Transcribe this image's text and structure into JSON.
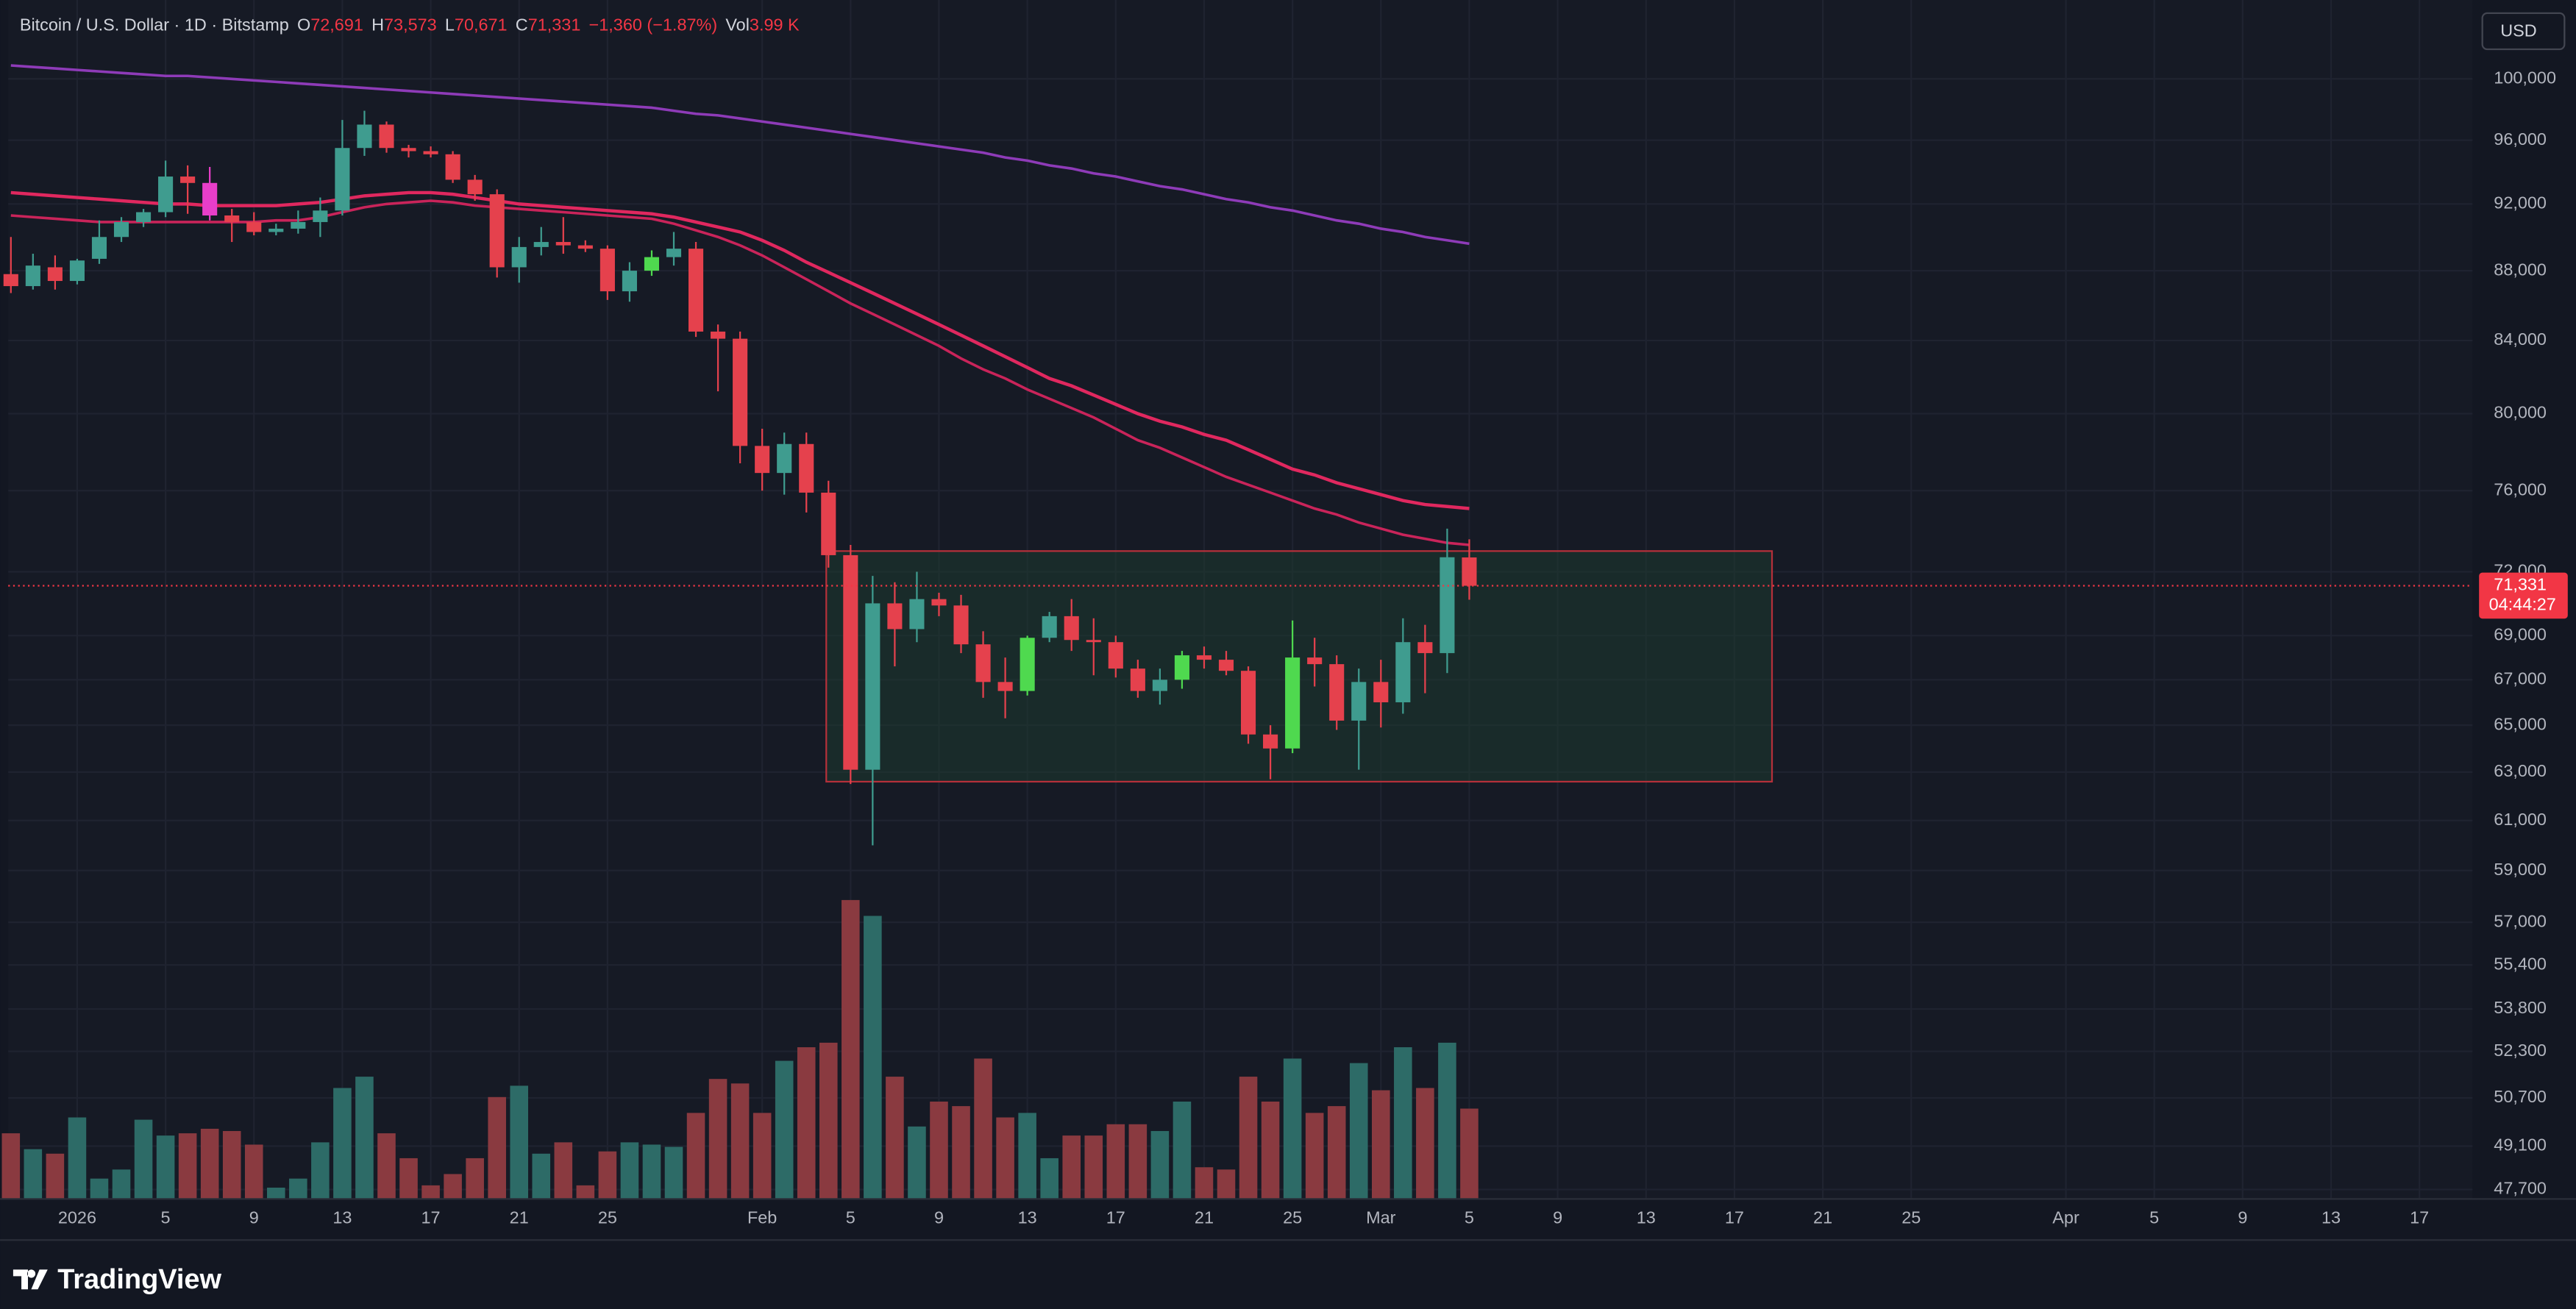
{
  "chart_data": {
    "type": "candlestick",
    "header": [
      {
        "text": "Bitcoin / U.S. Dollar · 1D · Bitstamp",
        "color": "#d1d4dc"
      },
      {
        "text": "O",
        "color": "#d1d4dc"
      },
      {
        "text": "72,691",
        "color": "#f23645"
      },
      {
        "text": "H",
        "color": "#d1d4dc"
      },
      {
        "text": "73,573",
        "color": "#f23645"
      },
      {
        "text": "L",
        "color": "#d1d4dc"
      },
      {
        "text": "70,671",
        "color": "#f23645"
      },
      {
        "text": "C",
        "color": "#d1d4dc"
      },
      {
        "text": "71,331",
        "color": "#f23645"
      },
      {
        "text": "−1,360 (−1.87%)",
        "color": "#f23645"
      },
      {
        "text": "Vol",
        "color": "#d1d4dc"
      },
      {
        "text": "3.99 K",
        "color": "#f23645"
      }
    ],
    "currency_button": "USD",
    "brand": "TradingView",
    "last_price": {
      "value": 71331,
      "label": "71,331",
      "countdown": "04:44:27",
      "color": "#f23645"
    },
    "log_scale": true,
    "grid": true,
    "xlim": [
      -2.12,
      109.4
    ],
    "xticks": [
      {
        "value": 1,
        "label": "2026"
      },
      5,
      9,
      13,
      17,
      21,
      25,
      {
        "value": 32,
        "label": "Feb"
      },
      {
        "value": 36,
        "label": "5"
      },
      {
        "value": 40,
        "label": "9"
      },
      {
        "value": 44,
        "label": "13"
      },
      {
        "value": 48,
        "label": "17"
      },
      {
        "value": 52,
        "label": "21"
      },
      {
        "value": 56,
        "label": "25"
      },
      {
        "value": 60,
        "label": "Mar"
      },
      {
        "value": 64,
        "label": "5"
      },
      {
        "value": 68,
        "label": "9"
      },
      {
        "value": 72,
        "label": "13"
      },
      {
        "value": 76,
        "label": "17"
      },
      {
        "value": 80,
        "label": "21"
      },
      {
        "value": 84,
        "label": "25"
      },
      {
        "value": 91,
        "label": "Apr"
      },
      {
        "value": 95,
        "label": "5"
      },
      {
        "value": 99,
        "label": "9"
      },
      {
        "value": 103,
        "label": "13"
      },
      {
        "value": 107,
        "label": "17"
      }
    ],
    "ylim": [
      47400,
      105400
    ],
    "yticks": [
      {
        "value": 100000,
        "label": "100,000"
      },
      {
        "value": 96000,
        "label": "96,000"
      },
      {
        "value": 92000,
        "label": "92,000"
      },
      {
        "value": 88000,
        "label": "88,000"
      },
      {
        "value": 84000,
        "label": "84,000"
      },
      {
        "value": 80000,
        "label": "80,000"
      },
      {
        "value": 76000,
        "label": "76,000"
      },
      {
        "value": 72000,
        "label": "72,000"
      },
      {
        "value": 69000,
        "label": "69,000"
      },
      {
        "value": 67000,
        "label": "67,000"
      },
      {
        "value": 65000,
        "label": "65,000"
      },
      {
        "value": 63000,
        "label": "63,000"
      },
      {
        "value": 61000,
        "label": "61,000"
      },
      {
        "value": 59000,
        "label": "59,000"
      },
      {
        "value": 57000,
        "label": "57,000"
      },
      {
        "value": 55400,
        "label": "55,400"
      },
      {
        "value": 53800,
        "label": "53,800"
      },
      {
        "value": 52300,
        "label": "52,300"
      },
      {
        "value": 50700,
        "label": "50,700"
      },
      {
        "value": 49100,
        "label": "49,100"
      },
      {
        "value": 47700,
        "label": "47,700"
      }
    ],
    "x": [
      -2,
      -1,
      0,
      1,
      2,
      3,
      4,
      5,
      6,
      7,
      8,
      9,
      10,
      11,
      12,
      13,
      14,
      15,
      16,
      17,
      18,
      19,
      20,
      21,
      22,
      23,
      24,
      25,
      26,
      27,
      28,
      29,
      30,
      31,
      32,
      33,
      34,
      35,
      36,
      37,
      38,
      39,
      40,
      41,
      42,
      43,
      44,
      45,
      46,
      47,
      48,
      49,
      50,
      51,
      52,
      53,
      54,
      55,
      56,
      57,
      58,
      59,
      60,
      61,
      62,
      63,
      64
    ],
    "open": [
      87800,
      87100,
      88200,
      87400,
      88700,
      90000,
      90900,
      91500,
      93700,
      93300,
      91300,
      90900,
      90300,
      90500,
      90900,
      91600,
      95500,
      97000,
      95500,
      95300,
      95100,
      93500,
      92600,
      88200,
      89400,
      89700,
      89500,
      89300,
      86800,
      88000,
      88800,
      89300,
      84500,
      84100,
      78300,
      76900,
      78400,
      75900,
      72800,
      63100,
      70500,
      69300,
      70700,
      70400,
      68600,
      66900,
      66500,
      68900,
      69900,
      68800,
      68700,
      67500,
      66500,
      67000,
      68100,
      67900,
      67400,
      64600,
      64000,
      68000,
      67700,
      65200,
      66900,
      66000,
      68700,
      68200,
      72691
    ],
    "high": [
      90000,
      89000,
      88900,
      88700,
      91000,
      91200,
      91700,
      94700,
      94400,
      94300,
      91700,
      91500,
      90800,
      91600,
      92400,
      97300,
      97900,
      97200,
      95700,
      95600,
      95300,
      93800,
      92900,
      90000,
      90600,
      91200,
      89800,
      89500,
      88500,
      89200,
      90300,
      89700,
      84900,
      84500,
      79200,
      79000,
      79000,
      76500,
      73300,
      71800,
      71500,
      72000,
      71000,
      70900,
      69200,
      68000,
      69000,
      70100,
      70700,
      69800,
      69000,
      67900,
      67500,
      68300,
      68500,
      68300,
      67600,
      65000,
      69700,
      68900,
      68100,
      67500,
      67900,
      69800,
      69500,
      74100,
      73573
    ],
    "low": [
      86700,
      86900,
      86900,
      87200,
      88400,
      89700,
      90600,
      91200,
      91400,
      91000,
      89700,
      90100,
      90100,
      90200,
      90000,
      91300,
      95000,
      95200,
      94900,
      94900,
      93300,
      92200,
      87600,
      87300,
      88900,
      89000,
      89100,
      86300,
      86200,
      87700,
      88300,
      84200,
      81200,
      77400,
      76000,
      75800,
      74900,
      72200,
      62500,
      60000,
      67600,
      68700,
      69900,
      68200,
      66200,
      65300,
      66300,
      68700,
      68300,
      67200,
      67100,
      66200,
      65900,
      66600,
      67500,
      67200,
      64200,
      62700,
      63800,
      66700,
      64800,
      63100,
      64900,
      65500,
      66400,
      67300,
      70671
    ],
    "close": [
      87100,
      88300,
      87400,
      88600,
      90000,
      90900,
      91500,
      93700,
      93300,
      91300,
      90900,
      90300,
      90500,
      90900,
      91600,
      95500,
      97000,
      95500,
      95300,
      95100,
      93500,
      92600,
      88200,
      89400,
      89700,
      89500,
      89300,
      86800,
      88000,
      88800,
      89300,
      84500,
      84100,
      78300,
      76900,
      78400,
      75900,
      72800,
      63100,
      70500,
      69300,
      70700,
      70400,
      68600,
      66900,
      66500,
      68900,
      69900,
      68800,
      68700,
      67500,
      66500,
      67000,
      68100,
      67900,
      67400,
      64600,
      64000,
      68000,
      67700,
      65200,
      66900,
      66000,
      68700,
      68200,
      72700,
      71331
    ],
    "candle_colors": [
      "#e5414d",
      "#3f9c8f",
      "#e5414d",
      "#3f9c8f",
      "#3f9c8f",
      "#3f9c8f",
      "#3f9c8f",
      "#3f9c8f",
      "#e5414d",
      "#e83ec9",
      "#e5414d",
      "#e5414d",
      "#3f9c8f",
      "#3f9c8f",
      "#3f9c8f",
      "#3f9c8f",
      "#3f9c8f",
      "#e5414d",
      "#e5414d",
      "#e5414d",
      "#e5414d",
      "#e5414d",
      "#e5414d",
      "#3f9c8f",
      "#3f9c8f",
      "#e5414d",
      "#e5414d",
      "#e5414d",
      "#3f9c8f",
      "#4fd94f",
      "#3f9c8f",
      "#e5414d",
      "#e5414d",
      "#e5414d",
      "#e5414d",
      "#3f9c8f",
      "#e5414d",
      "#e5414d",
      "#e5414d",
      "#3f9c8f",
      "#e5414d",
      "#3f9c8f",
      "#e5414d",
      "#e5414d",
      "#e5414d",
      "#e5414d",
      "#4fd94f",
      "#3f9c8f",
      "#e5414d",
      "#e5414d",
      "#e5414d",
      "#e5414d",
      "#3f9c8f",
      "#4fd94f",
      "#e5414d",
      "#e5414d",
      "#e5414d",
      "#e5414d",
      "#4fd94f",
      "#e5414d",
      "#e5414d",
      "#3f9c8f",
      "#e5414d",
      "#3f9c8f",
      "#e5414d",
      "#3f9c8f",
      "#e5414d"
    ],
    "volume": {
      "values": [
        2.9,
        2.2,
        2.0,
        3.6,
        0.9,
        1.3,
        3.5,
        2.8,
        2.9,
        3.1,
        3.0,
        2.4,
        0.5,
        0.9,
        2.5,
        4.9,
        5.4,
        2.9,
        1.8,
        0.6,
        1.1,
        1.8,
        4.5,
        5.0,
        2.0,
        2.5,
        0.6,
        2.1,
        2.5,
        2.4,
        2.3,
        3.8,
        5.3,
        5.1,
        3.8,
        6.1,
        6.7,
        6.9,
        13.2,
        12.5,
        5.4,
        3.2,
        4.3,
        4.1,
        6.2,
        3.6,
        3.8,
        1.8,
        2.8,
        2.8,
        3.3,
        3.3,
        3.0,
        4.3,
        1.4,
        1.3,
        5.4,
        4.3,
        6.2,
        3.8,
        4.1,
        6.0,
        4.8,
        6.7,
        4.9,
        6.9,
        3.99
      ],
      "up_color": "#2d6b67",
      "down_color": "#8a3a40"
    },
    "series": [
      {
        "color": "#8e3bb8",
        "values": [
          100900,
          100800,
          100700,
          100600,
          100500,
          100400,
          100300,
          100200,
          100200,
          100100,
          100000,
          99900,
          99800,
          99700,
          99600,
          99500,
          99400,
          99300,
          99200,
          99100,
          99000,
          98900,
          98800,
          98700,
          98600,
          98500,
          98400,
          98300,
          98200,
          98100,
          97900,
          97700,
          97600,
          97400,
          97200,
          97000,
          96800,
          96600,
          96400,
          96200,
          96000,
          95800,
          95600,
          95400,
          95200,
          94900,
          94700,
          94400,
          94200,
          93900,
          93700,
          93400,
          93100,
          92900,
          92600,
          92300,
          92100,
          91800,
          91600,
          91300,
          91000,
          90800,
          90500,
          90300,
          90000,
          89800,
          89600
        ]
      },
      {
        "color": "#e0285f",
        "values": [
          92700,
          92600,
          92500,
          92400,
          92300,
          92200,
          92100,
          92000,
          92000,
          91900,
          91900,
          91900,
          91900,
          92000,
          92100,
          92300,
          92500,
          92600,
          92700,
          92700,
          92600,
          92400,
          92200,
          92000,
          91900,
          91800,
          91700,
          91600,
          91500,
          91400,
          91200,
          90900,
          90600,
          90300,
          89800,
          89200,
          88500,
          87900,
          87300,
          86700,
          86100,
          85500,
          84900,
          84300,
          83700,
          83100,
          82500,
          81900,
          81500,
          81000,
          80500,
          80000,
          79600,
          79300,
          78900,
          78600,
          78100,
          77600,
          77100,
          76800,
          76400,
          76100,
          75800,
          75500,
          75300,
          75200,
          75100
        ]
      },
      {
        "color": "#c9245a",
        "values": [
          91300,
          91200,
          91100,
          91000,
          90900,
          90900,
          90900,
          90900,
          90900,
          90900,
          90900,
          90900,
          91000,
          91000,
          91200,
          91500,
          91800,
          92000,
          92100,
          92200,
          92100,
          91900,
          91800,
          91700,
          91600,
          91500,
          91400,
          91300,
          91200,
          91100,
          90800,
          90400,
          90000,
          89500,
          88900,
          88200,
          87500,
          86800,
          86100,
          85500,
          84900,
          84300,
          83700,
          83000,
          82400,
          81900,
          81300,
          80800,
          80300,
          79800,
          79200,
          78600,
          78200,
          77700,
          77200,
          76700,
          76300,
          75900,
          75500,
          75100,
          74800,
          74400,
          74100,
          73800,
          73600,
          73400,
          73300
        ]
      }
    ],
    "range_box": {
      "x": [
        34.9,
        77.7
      ],
      "y": [
        62600,
        73000
      ],
      "color": "#b5303a",
      "fill": "#1d3a30"
    }
  }
}
